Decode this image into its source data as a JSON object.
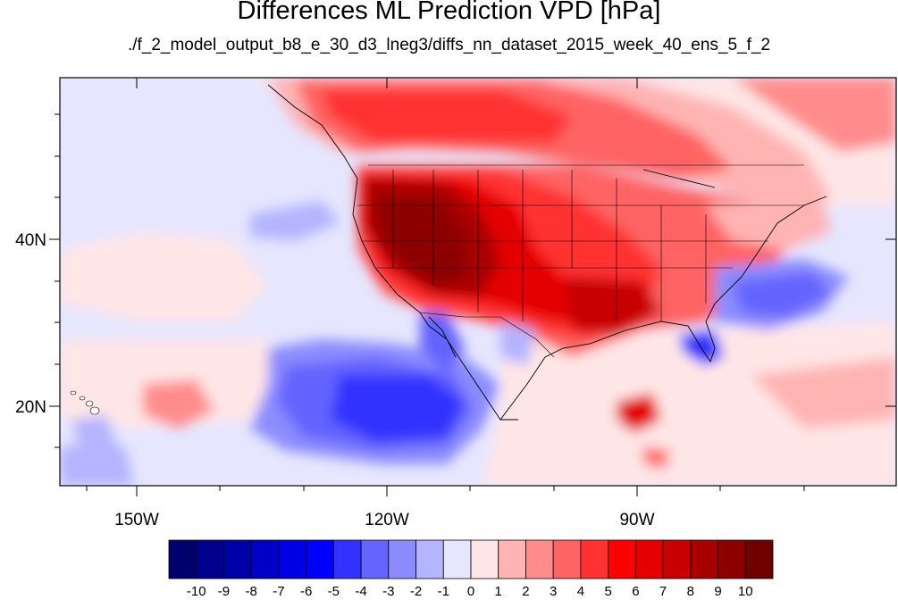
{
  "title": "Differences ML Prediction VPD [hPa]",
  "subtitle": "./f_2_model_output_b8_e_30_d3_lneg3/diffs_nn_dataset_2015_week_40_ens_5_f_2",
  "axes": {
    "lon_labels": [
      "150W",
      "120W",
      "90W"
    ],
    "lat_labels": [
      "40N",
      "20N"
    ]
  },
  "colorbar": {
    "labels": [
      "-10",
      "-9",
      "-8",
      "-7",
      "-6",
      "-5",
      "-4",
      "-3",
      "-2",
      "-1",
      "0",
      "1",
      "2",
      "3",
      "4",
      "5",
      "6",
      "7",
      "8",
      "9",
      "10"
    ],
    "colors": [
      "#00006e",
      "#00008c",
      "#0000a8",
      "#0000c8",
      "#0000e4",
      "#0000ff",
      "#3232ff",
      "#6464ff",
      "#8c8cff",
      "#b4b4ff",
      "#e6e6ff",
      "#ffe6e6",
      "#ffb4b4",
      "#ff8c8c",
      "#ff6464",
      "#ff3232",
      "#ff0000",
      "#e40000",
      "#c80000",
      "#a80000",
      "#8c0000",
      "#6e0000"
    ]
  },
  "chart_data": {
    "type": "heatmap",
    "title": "Differences ML Prediction VPD [hPa]",
    "subtitle": "./f_2_model_output_b8_e_30_d3_lneg3/diffs_nn_dataset_2015_week_40_ens_5_f_2",
    "lon_range": [
      -159,
      -62
    ],
    "lat_range": [
      10,
      58
    ],
    "color_levels": [
      -10,
      -9,
      -8,
      -7,
      -6,
      -5,
      -4,
      -3,
      -2,
      -1,
      0,
      1,
      2,
      3,
      4,
      5,
      6,
      7,
      8,
      9,
      10
    ],
    "regions": [
      {
        "region": "Western United States interior (Nevada / Utah / California)",
        "value": 10
      },
      {
        "region": "Pacific Northwest / Idaho",
        "value": 8
      },
      {
        "region": "Texas / Southern Plains / Southeast US",
        "value": 6
      },
      {
        "region": "Central Canada / Northern Plains",
        "value": 4
      },
      {
        "region": "Eastern Canada / Great Lakes",
        "value": 2
      },
      {
        "region": "Eastern Pacific off Baja California",
        "value": -5
      },
      {
        "region": "Gulf of California",
        "value": -4
      },
      {
        "region": "Atlantic off Southeast US coast",
        "value": -4
      },
      {
        "region": "Florida",
        "value": -5
      },
      {
        "region": "Central North Pacific (around 40N, 135W)",
        "value": -2
      },
      {
        "region": "Caribbean / Central America",
        "value": 3
      }
    ]
  }
}
